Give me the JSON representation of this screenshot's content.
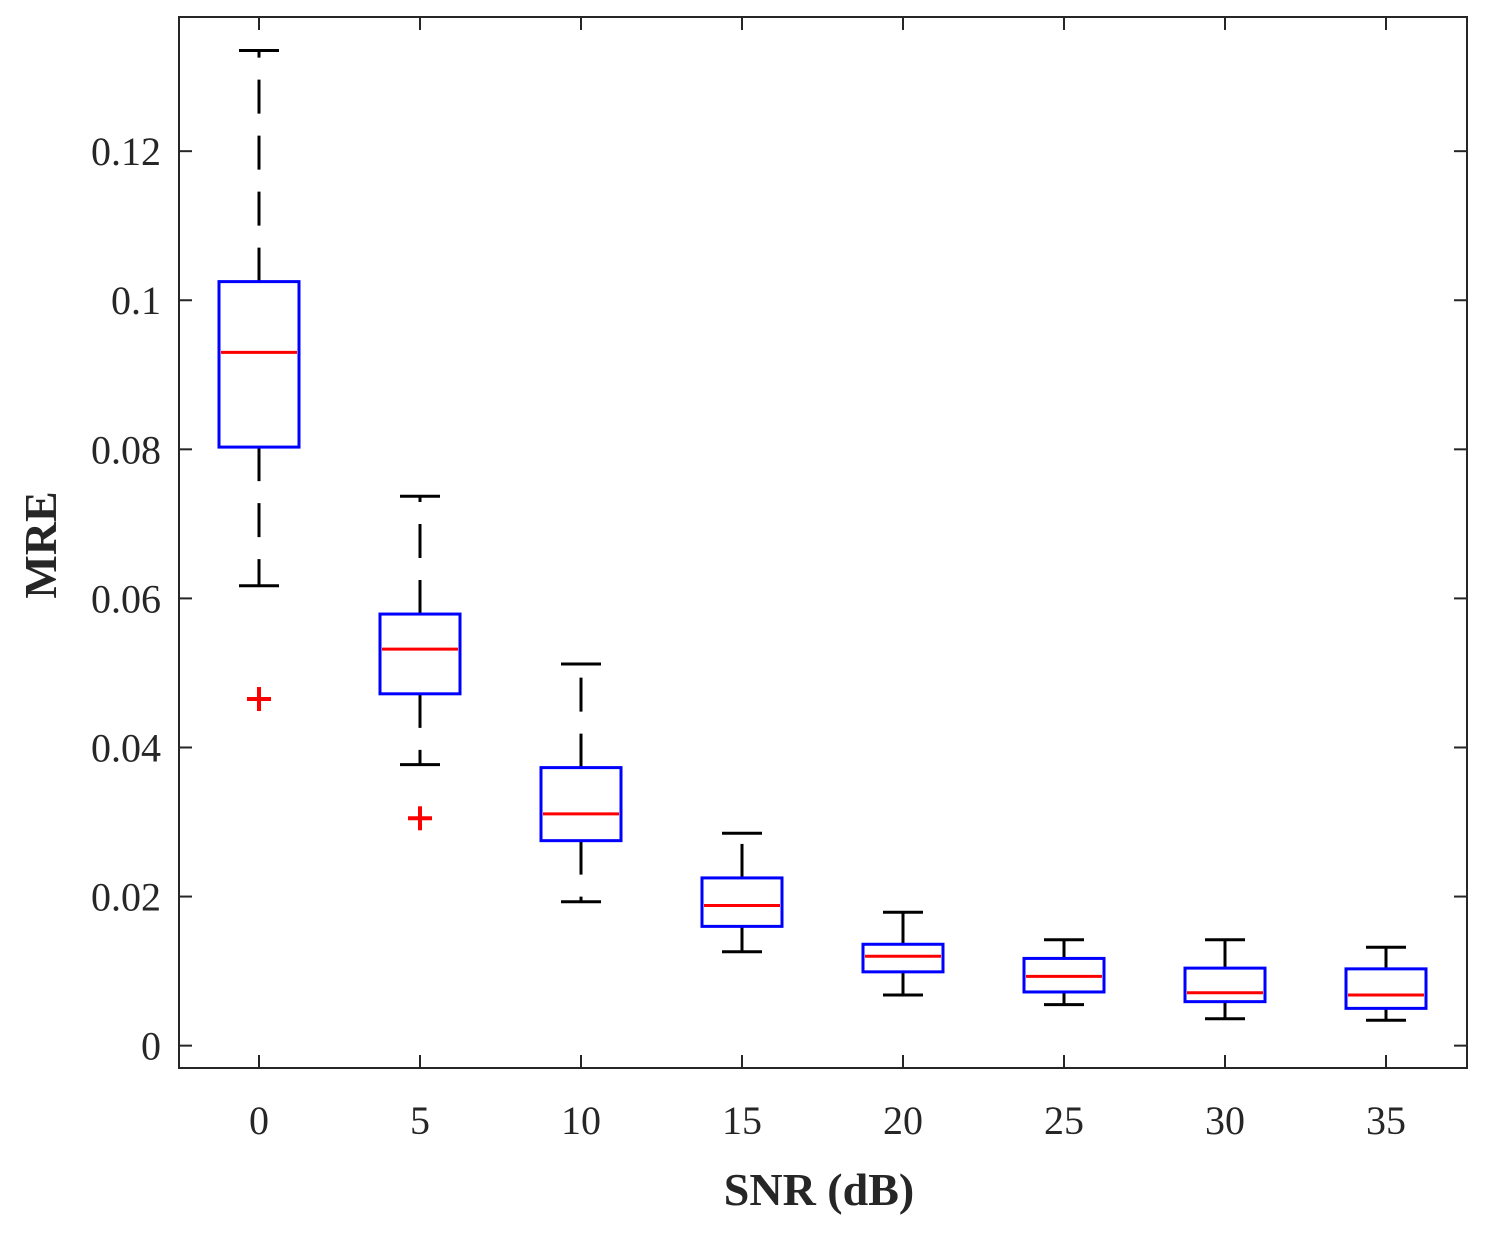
{
  "chart_data": {
    "type": "boxplot",
    "title": "",
    "xlabel": "SNR (dB)",
    "ylabel": "MRE",
    "categories": [
      "0",
      "5",
      "10",
      "15",
      "20",
      "25",
      "30",
      "35"
    ],
    "ylim": [
      -0.003,
      0.138
    ],
    "yticks": [
      0,
      0.02,
      0.04,
      0.06,
      0.08,
      0.1,
      0.12
    ],
    "ytick_labels": [
      "0",
      "0.02",
      "0.04",
      "0.06",
      "0.08",
      "0.1",
      "0.12"
    ],
    "grid": false,
    "boxes": [
      {
        "x": "0",
        "lower_whisker": 0.0617,
        "q1": 0.0803,
        "median": 0.093,
        "q3": 0.1025,
        "upper_whisker": 0.1335,
        "outliers": [
          0.0465
        ]
      },
      {
        "x": "5",
        "lower_whisker": 0.0377,
        "q1": 0.0472,
        "median": 0.0532,
        "q3": 0.0579,
        "upper_whisker": 0.0737,
        "outliers": [
          0.0305
        ]
      },
      {
        "x": "10",
        "lower_whisker": 0.0193,
        "q1": 0.0275,
        "median": 0.0311,
        "q3": 0.0373,
        "upper_whisker": 0.0512,
        "outliers": []
      },
      {
        "x": "15",
        "lower_whisker": 0.0126,
        "q1": 0.016,
        "median": 0.0188,
        "q3": 0.0225,
        "upper_whisker": 0.0285,
        "outliers": []
      },
      {
        "x": "20",
        "lower_whisker": 0.0068,
        "q1": 0.0099,
        "median": 0.012,
        "q3": 0.0136,
        "upper_whisker": 0.0179,
        "outliers": []
      },
      {
        "x": "25",
        "lower_whisker": 0.0055,
        "q1": 0.0072,
        "median": 0.0093,
        "q3": 0.0117,
        "upper_whisker": 0.0142,
        "outliers": []
      },
      {
        "x": "30",
        "lower_whisker": 0.0036,
        "q1": 0.0059,
        "median": 0.0071,
        "q3": 0.0104,
        "upper_whisker": 0.0142,
        "outliers": []
      },
      {
        "x": "35",
        "lower_whisker": 0.0034,
        "q1": 0.005,
        "median": 0.0068,
        "q3": 0.0103,
        "upper_whisker": 0.0132,
        "outliers": []
      }
    ],
    "colors": {
      "box": "#0000ff",
      "median": "#ff0000",
      "whisker": "#000000",
      "outlier": "#ff0000",
      "axis": "#262626"
    }
  }
}
